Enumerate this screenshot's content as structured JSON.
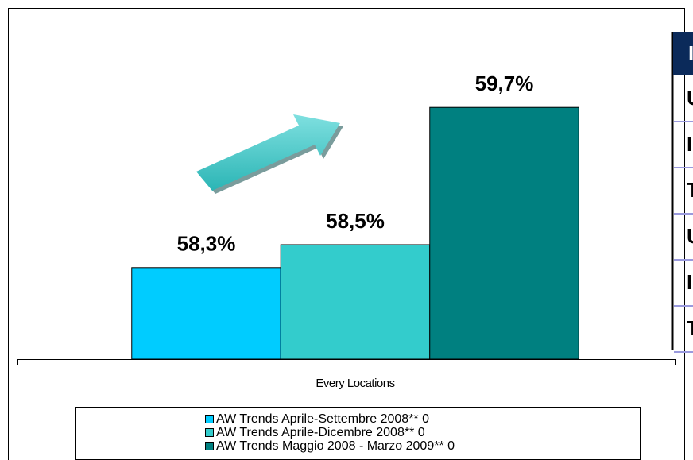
{
  "chart_data": {
    "type": "bar",
    "categories": [
      "Every Locations"
    ],
    "series": [
      {
        "name": "AW Trends Aprile-Settembre 2008** 0",
        "color": "#00ccff",
        "values": [
          58.3
        ],
        "value_labels": [
          "58,3%"
        ]
      },
      {
        "name": "AW Trends Aprile-Dicembre 2008** 0",
        "color": "#33cccc",
        "values": [
          58.5
        ],
        "value_labels": [
          "58,5%"
        ]
      },
      {
        "name": "AW Trends Maggio 2008 - Marzo 2009** 0",
        "color": "#008080",
        "values": [
          59.7
        ],
        "value_labels": [
          "59,7%"
        ]
      }
    ],
    "ylim": [
      57.5,
      60
    ]
  },
  "side_table": {
    "header": "I",
    "rows": [
      "U",
      "I",
      "T",
      "U",
      "I",
      "T"
    ]
  }
}
